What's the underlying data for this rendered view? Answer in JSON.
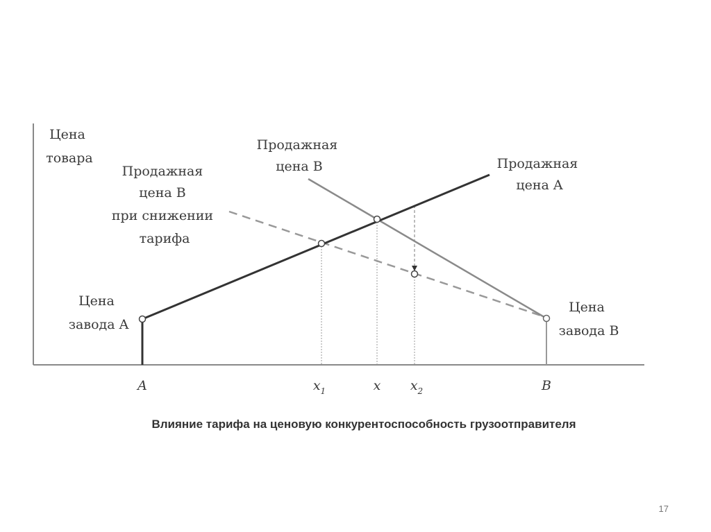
{
  "diagram": {
    "y_axis_label": [
      "Цена",
      "товара"
    ],
    "line_a_label": [
      "Продажная",
      "цена A"
    ],
    "line_b_label": [
      "Продажная",
      "цена B"
    ],
    "line_b_reduced_label": [
      "Продажная",
      "цена B",
      "при снижении",
      "тарифа"
    ],
    "factory_a_label": [
      "Цена",
      "завода A"
    ],
    "factory_b_label": [
      "Цена",
      "завода B"
    ],
    "x_ticks": {
      "a": "A",
      "x1": "x",
      "x1_sub": "1",
      "x": "x",
      "x2": "x",
      "x2_sub": "2",
      "b": "B"
    },
    "caption": "Влияние тарифа на ценовую конкурентоспособность грузоотправителя"
  },
  "page_number": "17",
  "colors": {
    "line_a": "#333333",
    "line_b": "#8a8a8a",
    "dashed": "#999999",
    "axis": "#888888"
  }
}
